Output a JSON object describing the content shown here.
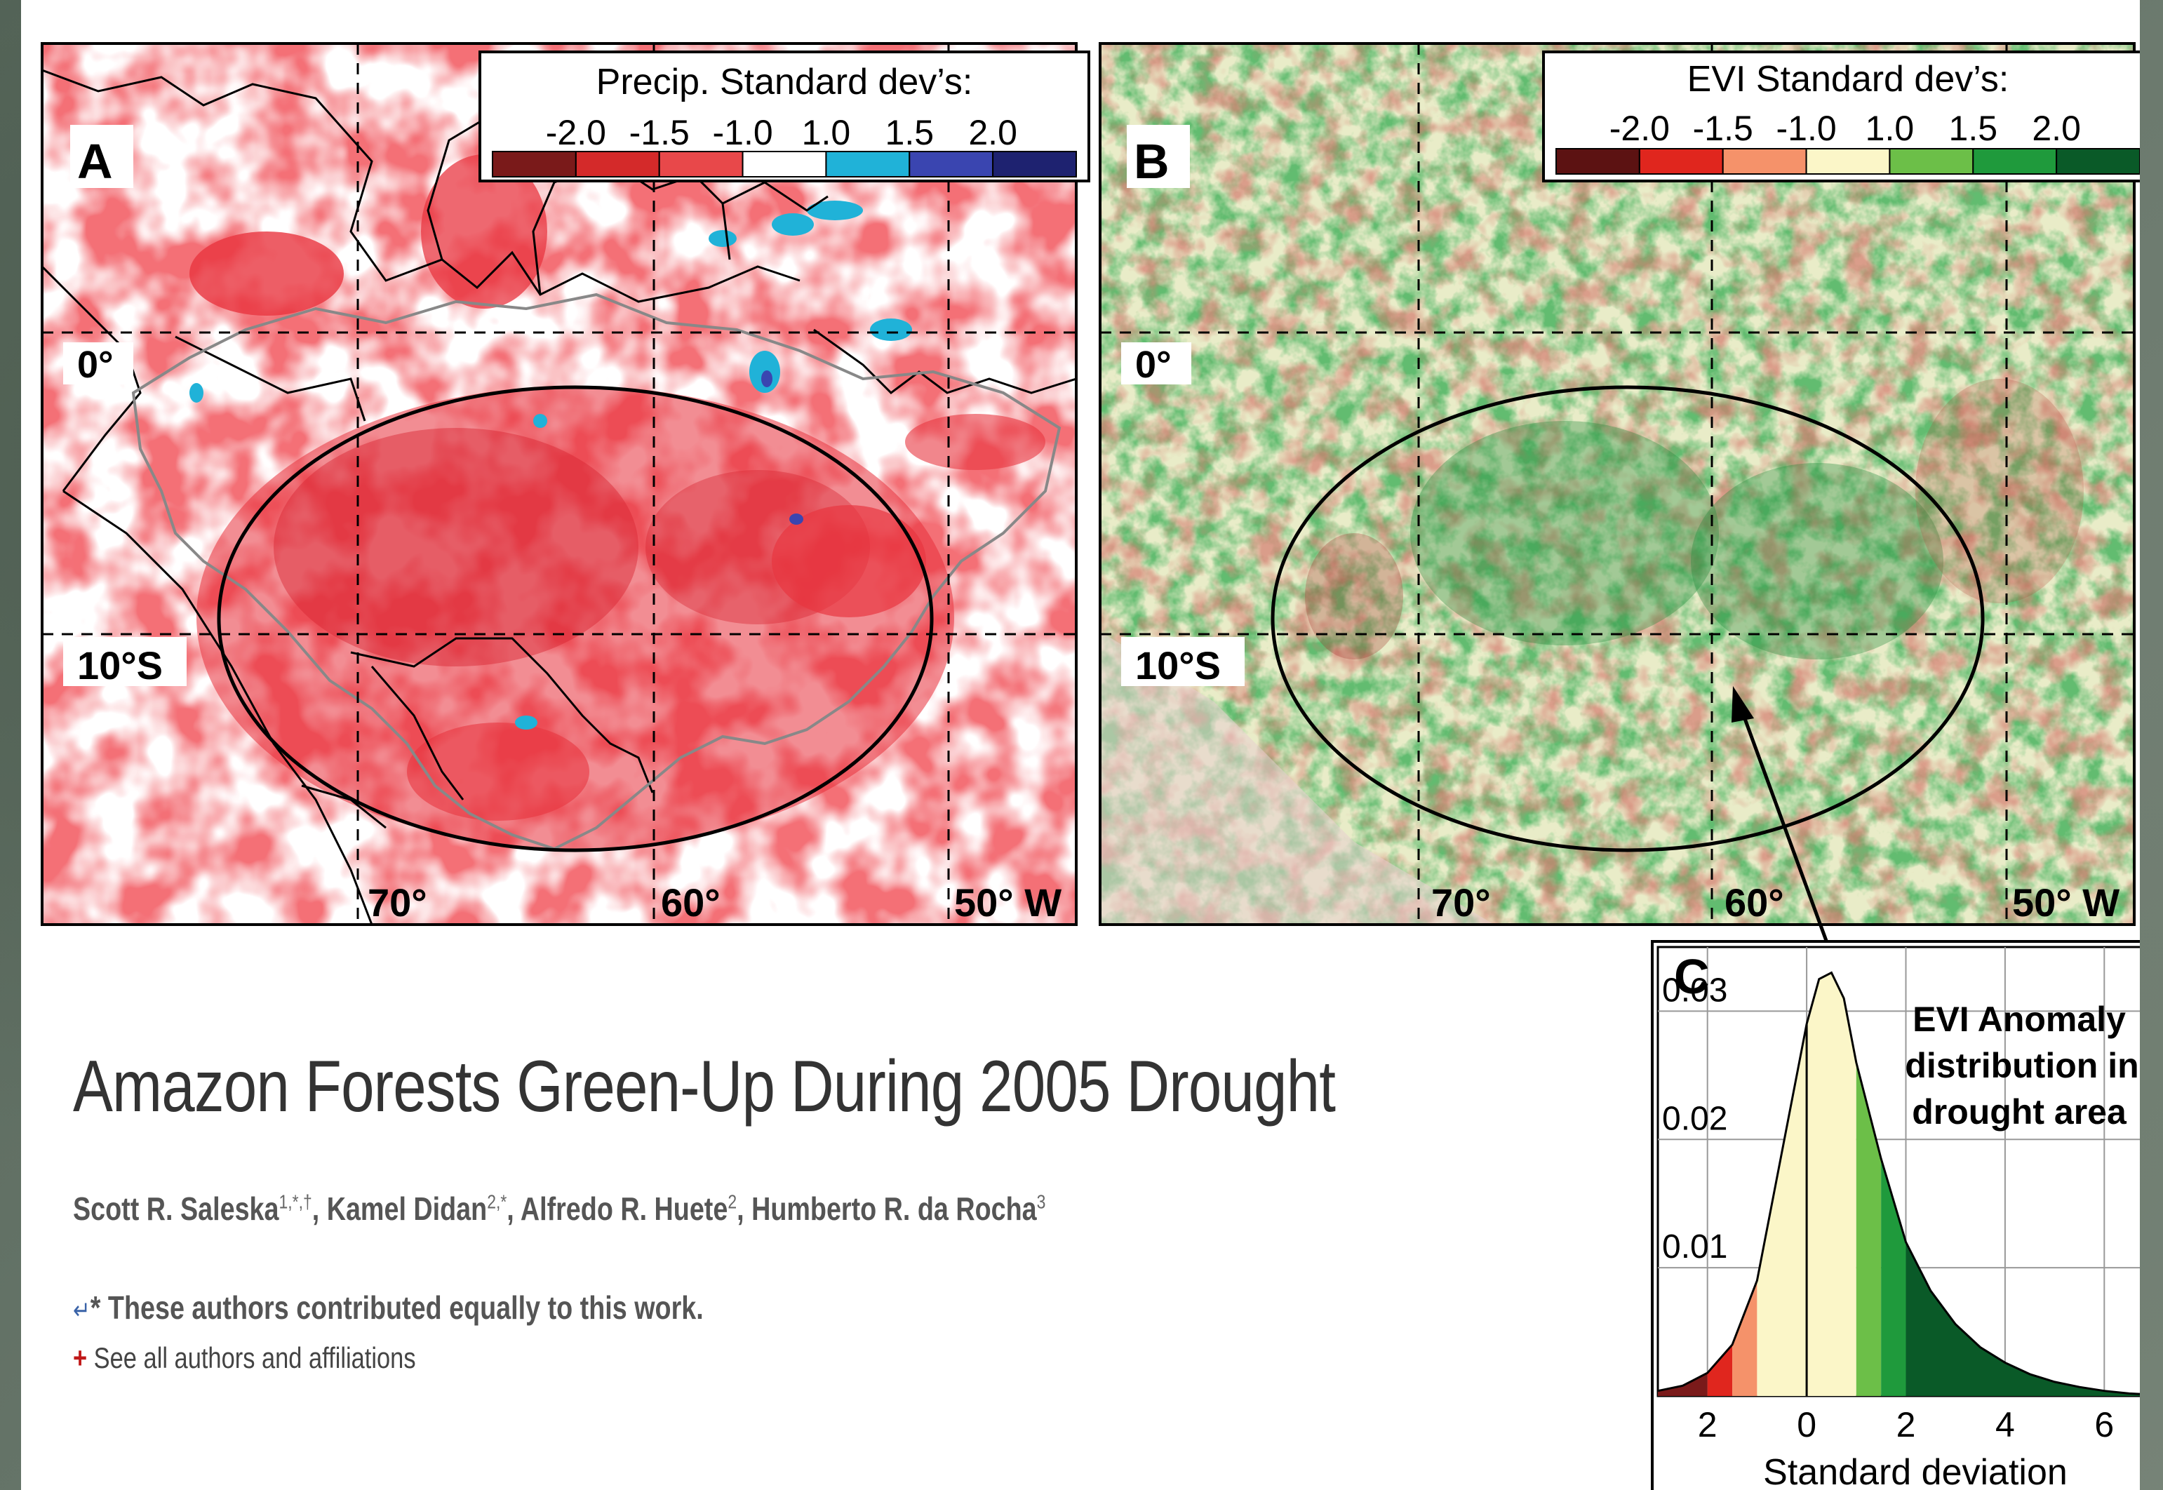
{
  "panel_a": {
    "letter": "A",
    "legend_title": "Precip. Standard dev’s:",
    "legend_ticks": [
      "-2.0",
      "-1.5",
      "-1.0",
      "1.0",
      "1.5",
      "2.0"
    ],
    "legend_colors": [
      "#7a1a1a",
      "#d42a2a",
      "#e8484a",
      "#ffffff",
      "#20b2d8",
      "#3a45b0",
      "#1e2270"
    ],
    "lat_labels": [
      "0°",
      "10°S"
    ],
    "lon_labels": [
      "70°",
      "60°",
      "50° W"
    ]
  },
  "panel_b": {
    "letter": "B",
    "legend_title": "EVI Standard dev’s:",
    "legend_ticks": [
      "-2.0",
      "-1.5",
      "-1.0",
      "1.0",
      "1.5",
      "2.0"
    ],
    "legend_colors": [
      "#5c1212",
      "#e0261e",
      "#f5926a",
      "#fbf6c8",
      "#6cbf48",
      "#1f9a3c",
      "#0a5a28"
    ],
    "lat_labels": [
      "0°",
      "10°S"
    ],
    "lon_labels": [
      "70°",
      "60°",
      "50° W"
    ]
  },
  "panel_c": {
    "letter": "C",
    "annotation": [
      "EVI Anomaly",
      "distribution in",
      "drought area"
    ],
    "xlabel": "Standard deviation",
    "y_ticks": [
      "0.03",
      "0.02",
      "0.01"
    ],
    "x_ticks": [
      "2",
      "0",
      "2",
      "4",
      "6"
    ]
  },
  "chart_data": {
    "type": "area",
    "series_name": "EVI Anomaly distribution in drought area",
    "xlabel": "Standard deviation",
    "ylabel": "",
    "x_ticks": [
      "2",
      "0",
      "2",
      "4",
      "6"
    ],
    "y_ticks": [
      0.01,
      0.02,
      0.03
    ],
    "xlim": [
      -3,
      7
    ],
    "ylim": [
      0,
      0.035
    ],
    "x": [
      -3.0,
      -2.5,
      -2.0,
      -1.5,
      -1.0,
      -0.5,
      0.0,
      0.25,
      0.5,
      0.75,
      1.0,
      1.5,
      2.0,
      2.5,
      3.0,
      3.5,
      4.0,
      4.5,
      5.0,
      5.5,
      6.0,
      6.5,
      7.0
    ],
    "y": [
      0.0004,
      0.0008,
      0.0018,
      0.004,
      0.009,
      0.019,
      0.029,
      0.0325,
      0.033,
      0.031,
      0.026,
      0.0185,
      0.012,
      0.0082,
      0.0056,
      0.0038,
      0.0026,
      0.0017,
      0.0011,
      0.0007,
      0.0004,
      0.0002,
      0.0001
    ],
    "color_bands": [
      {
        "from": -3.0,
        "to": -2.0,
        "color": "#7a1a1a"
      },
      {
        "from": -2.0,
        "to": -1.5,
        "color": "#e0261e"
      },
      {
        "from": -1.5,
        "to": -1.0,
        "color": "#f5926a"
      },
      {
        "from": -1.0,
        "to": 1.0,
        "color": "#fbf6c8"
      },
      {
        "from": 1.0,
        "to": 1.5,
        "color": "#6cbf48"
      },
      {
        "from": 1.5,
        "to": 2.0,
        "color": "#1f9a3c"
      },
      {
        "from": 2.0,
        "to": 7.0,
        "color": "#0a5a28"
      }
    ]
  },
  "article": {
    "title": "Amazon Forests Green-Up During 2005 Drought",
    "authors": [
      {
        "name": "Scott R. Saleska",
        "sup": "1,*,†",
        "sep": ", "
      },
      {
        "name": "Kamel Didan",
        "sup": "2,*",
        "sep": ", "
      },
      {
        "name": "Alfredo R. Huete",
        "sup": "2",
        "sep": ", "
      },
      {
        "name": "Humberto R. da Rocha",
        "sup": "3",
        "sep": ""
      }
    ],
    "equal_contribution_note": "* These authors contributed equally to this work.",
    "see_all_link": "See all authors and affiliations",
    "see_all_plus": "+",
    "return_glyph": "↵"
  }
}
